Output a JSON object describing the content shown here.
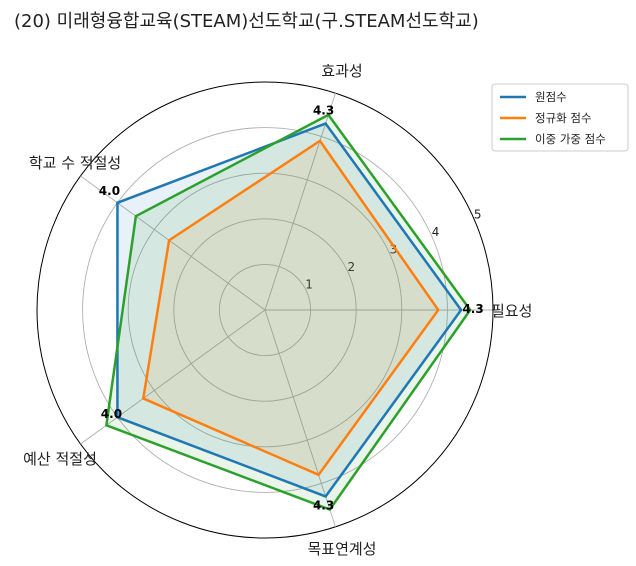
{
  "chart_data": {
    "type": "radar",
    "title": "(20) 미래형융합교육(STEAM)선도학교(구.STEAM선도학교)",
    "axes": [
      "필요성",
      "효과성",
      "학교 수 적절성",
      "예산 적절성",
      "목표연계성"
    ],
    "rlim": [
      0,
      5
    ],
    "rticks": [
      1,
      2,
      3,
      4,
      5
    ],
    "rtick_labels": [
      "1",
      "2",
      "3",
      "4",
      "5"
    ],
    "grid": true,
    "legend_position": "top-right",
    "series": [
      {
        "name": "원점수",
        "values": [
          4.3,
          4.3,
          4.0,
          4.0,
          4.3
        ],
        "color": "#1f77b4",
        "fill": "#1f77b4"
      },
      {
        "name": "정규화 점수",
        "values": [
          3.8,
          3.9,
          2.6,
          3.3,
          3.8
        ],
        "color": "#ff7f0e",
        "fill": "#ff7f0e"
      },
      {
        "name": "이중 가중 점수",
        "values": [
          4.5,
          4.5,
          3.5,
          4.3,
          4.6
        ],
        "color": "#2ca02c",
        "fill": "#2ca02c"
      }
    ],
    "data_labels": [
      "4.3",
      "4.3",
      "4.0",
      "4.0",
      "4.3"
    ]
  }
}
